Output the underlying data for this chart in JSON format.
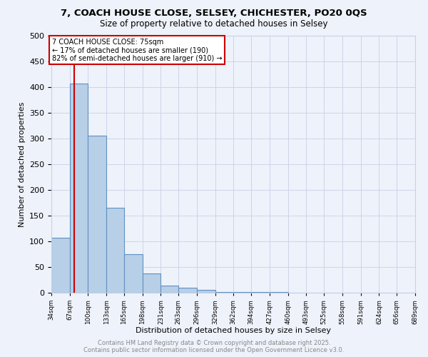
{
  "title1": "7, COACH HOUSE CLOSE, SELSEY, CHICHESTER, PO20 0QS",
  "title2": "Size of property relative to detached houses in Selsey",
  "xlabel": "Distribution of detached houses by size in Selsey",
  "ylabel": "Number of detached properties",
  "bar_edges": [
    34,
    67,
    100,
    133,
    165,
    198,
    231,
    263,
    296,
    329,
    362,
    394,
    427,
    460,
    493,
    525,
    558,
    591,
    624,
    656,
    689
  ],
  "bar_heights": [
    107,
    407,
    305,
    165,
    75,
    37,
    14,
    10,
    5,
    2,
    1,
    1,
    1,
    0,
    0,
    0,
    0,
    0,
    0,
    0
  ],
  "bar_color": "#b8cfe8",
  "bar_edge_color": "#6090c0",
  "property_size": 75,
  "annotation_box_text": "7 COACH HOUSE CLOSE: 75sqm\n← 17% of detached houses are smaller (190)\n82% of semi-detached houses are larger (910) →",
  "annotation_box_color": "#ffffff",
  "annotation_box_edge_color": "#cc0000",
  "red_line_color": "#cc0000",
  "ylim": [
    0,
    500
  ],
  "yticks": [
    0,
    50,
    100,
    150,
    200,
    250,
    300,
    350,
    400,
    450,
    500
  ],
  "background_color": "#eef2fa",
  "grid_color": "#c8d0e8",
  "footer_line1": "Contains HM Land Registry data © Crown copyright and database right 2025.",
  "footer_line2": "Contains public sector information licensed under the Open Government Licence v3.0.",
  "tick_labels": [
    "34sqm",
    "67sqm",
    "100sqm",
    "133sqm",
    "165sqm",
    "198sqm",
    "231sqm",
    "263sqm",
    "296sqm",
    "329sqm",
    "362sqm",
    "394sqm",
    "427sqm",
    "460sqm",
    "493sqm",
    "525sqm",
    "558sqm",
    "591sqm",
    "624sqm",
    "656sqm",
    "689sqm"
  ]
}
